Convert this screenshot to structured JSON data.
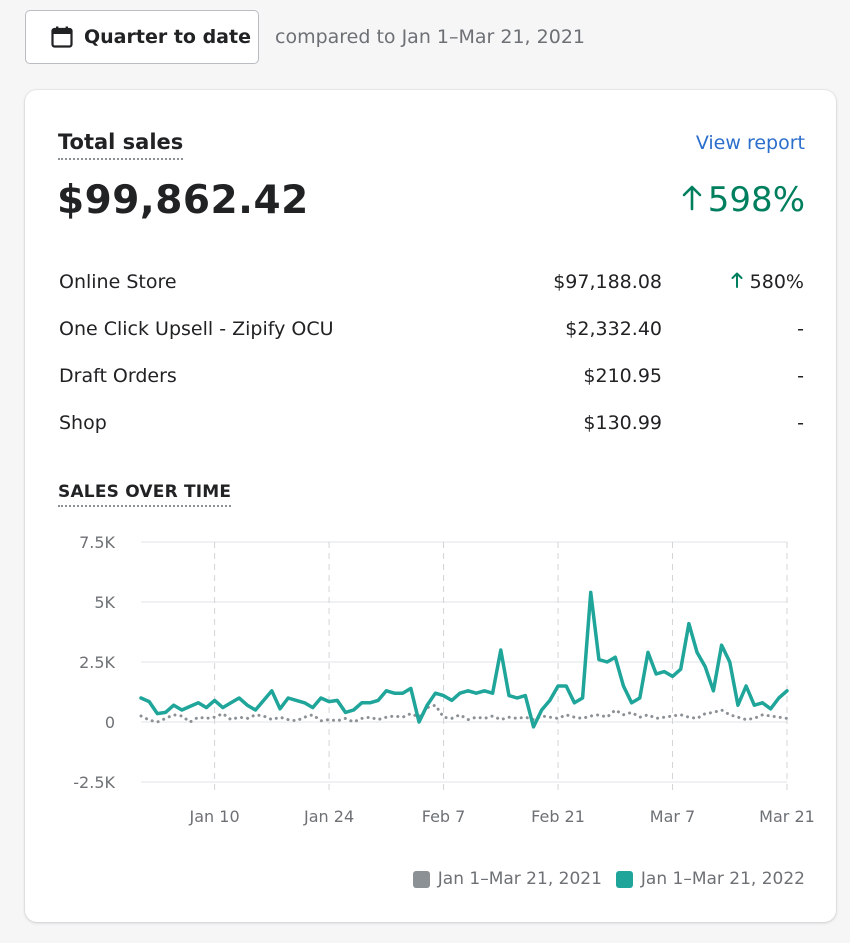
{
  "date_button": {
    "label": "Quarter to date",
    "icon": "calendar-icon"
  },
  "compare_text": "compared to Jan 1–Mar 21, 2021",
  "card": {
    "title": "Total sales",
    "view_report": "View report",
    "total": "$99,862.42",
    "change": "598%",
    "change_icon": "arrow-up-icon",
    "rows": [
      {
        "name": "Online Store",
        "amount": "$97,188.08",
        "change": "580%",
        "up": true
      },
      {
        "name": "One Click Upsell - Zipify OCU",
        "amount": "$2,332.40",
        "change": "-"
      },
      {
        "name": "Draft Orders",
        "amount": "$210.95",
        "change": "-"
      },
      {
        "name": "Shop",
        "amount": "$130.99",
        "change": "-"
      }
    ],
    "sales_over_time": "SALES OVER TIME"
  },
  "colors": {
    "current": "#1fa59a",
    "previous": "#8c9196",
    "up": "#007f5f",
    "link": "#2c6ecb"
  },
  "chart_data": {
    "type": "line",
    "title": "SALES OVER TIME",
    "y_ticks": [
      "7.5K",
      "5K",
      "2.5K",
      "0",
      "-2.5K"
    ],
    "y_tick_values": [
      7500,
      5000,
      2500,
      0,
      -2500
    ],
    "ylim": [
      -2500,
      7500
    ],
    "x_tick_labels": [
      "Jan 10",
      "Jan 24",
      "Feb 7",
      "Feb 21",
      "Mar 7",
      "Mar 21"
    ],
    "x_tick_days": [
      9,
      23,
      37,
      51,
      65,
      79
    ],
    "xlim": [
      0,
      79
    ],
    "grid": true,
    "legend": "bottom-right",
    "series": [
      {
        "name": "Jan 1–Mar 21, 2021",
        "style": "dotted",
        "color": "#8c9196",
        "values": [
          250,
          80,
          0,
          150,
          300,
          250,
          0,
          200,
          150,
          200,
          350,
          100,
          200,
          150,
          300,
          250,
          100,
          200,
          100,
          50,
          200,
          300,
          50,
          100,
          50,
          150,
          0,
          150,
          200,
          100,
          200,
          250,
          200,
          350,
          200,
          600,
          700,
          200,
          150,
          300,
          100,
          200,
          150,
          250,
          100,
          200,
          150,
          200,
          100,
          250,
          200,
          150,
          300,
          200,
          150,
          250,
          300,
          200,
          500,
          300,
          400,
          200,
          300,
          150,
          200,
          250,
          300,
          200,
          150,
          350,
          400,
          500,
          300,
          200,
          100,
          150,
          300,
          250,
          200,
          150
        ]
      },
      {
        "name": "Jan 1–Mar 21, 2022",
        "style": "solid",
        "color": "#1fa59a",
        "values": [
          1000,
          850,
          350,
          400,
          700,
          500,
          650,
          800,
          600,
          900,
          600,
          800,
          1000,
          700,
          500,
          900,
          1300,
          550,
          1000,
          900,
          800,
          600,
          1000,
          850,
          900,
          400,
          500,
          800,
          800,
          900,
          1300,
          1200,
          1200,
          1400,
          0,
          700,
          1200,
          1100,
          900,
          1200,
          1300,
          1200,
          1300,
          1200,
          3000,
          1100,
          1000,
          1100,
          -200,
          500,
          900,
          1500,
          1500,
          800,
          1000,
          5400,
          2600,
          2500,
          2700,
          1500,
          800,
          1000,
          2900,
          2000,
          2100,
          1900,
          2200,
          4100,
          2900,
          2300,
          1300,
          3200,
          2500,
          700,
          1500,
          700,
          800,
          550,
          1000,
          1300
        ]
      }
    ]
  }
}
